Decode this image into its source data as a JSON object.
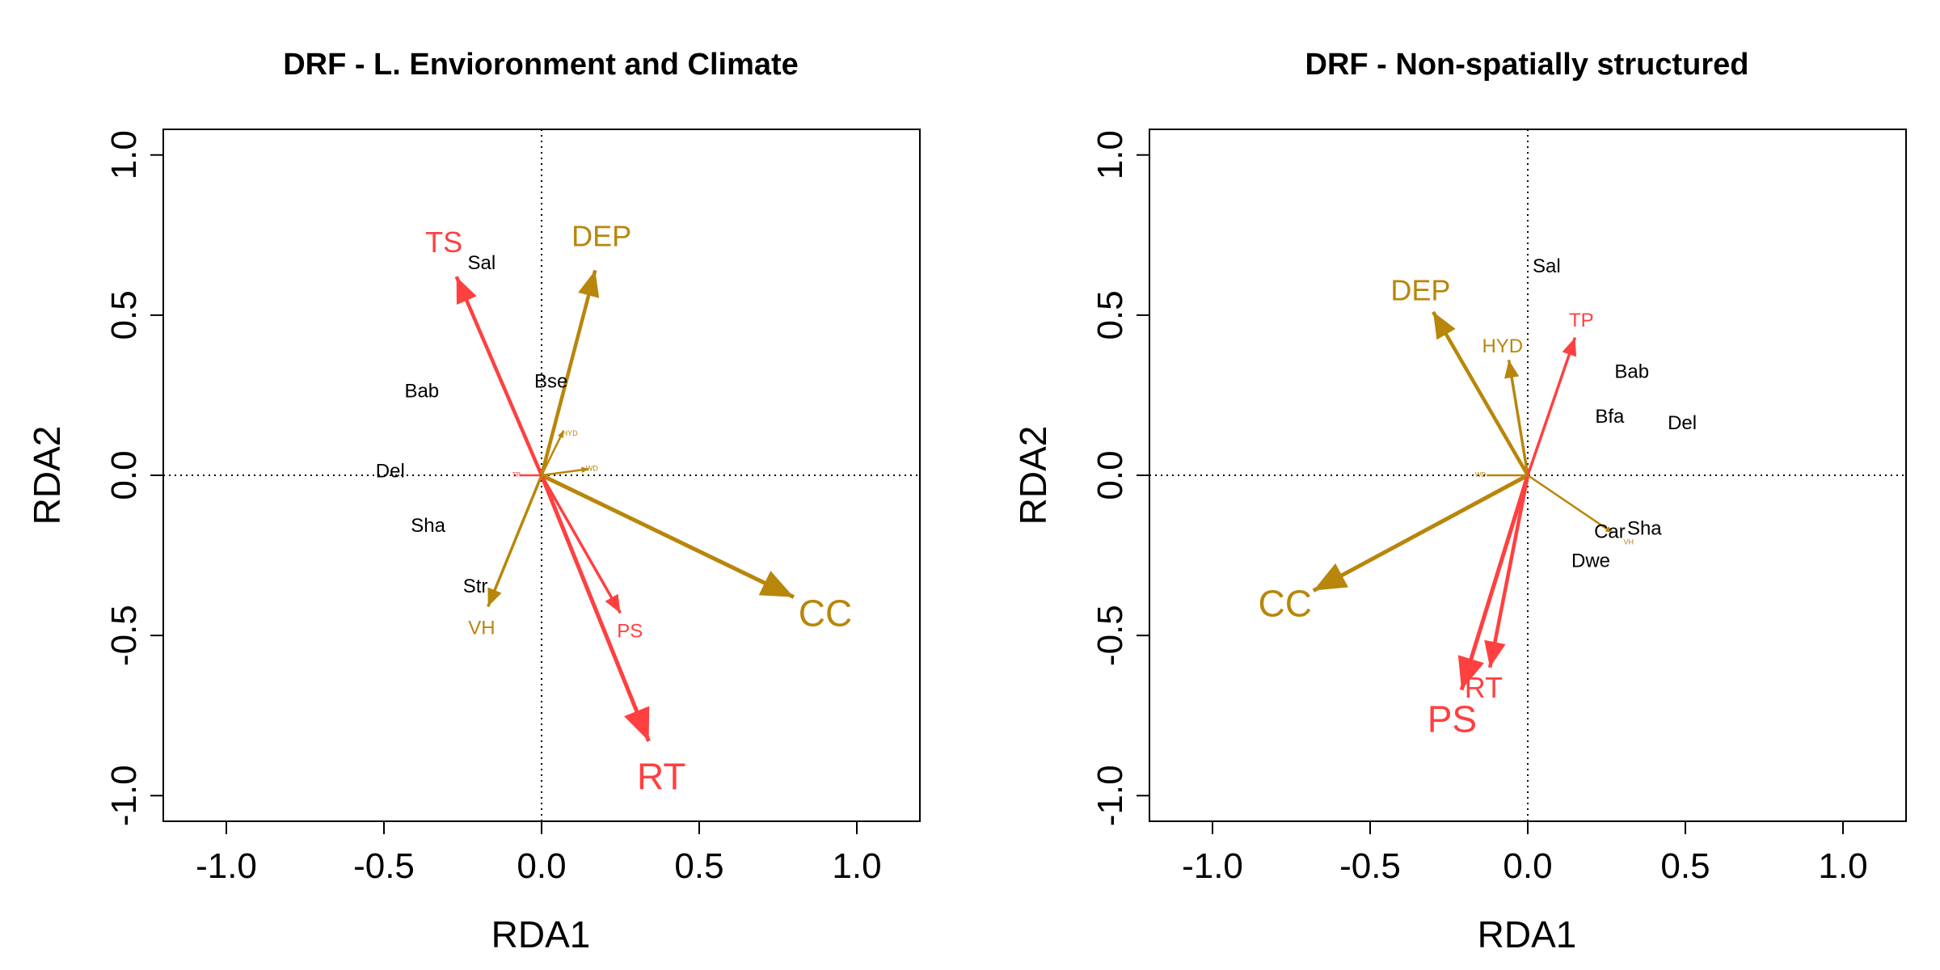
{
  "colors": {
    "env": "#B8860B",
    "clim": "#FF4040",
    "species": "#000000",
    "axis": "#000000"
  },
  "chart_data": [
    {
      "type": "scatter",
      "title": "DRF - L. Envioronment and Climate",
      "xlabel": "RDA1",
      "ylabel": "RDA2",
      "xlim": [
        -1.2,
        1.2
      ],
      "ylim": [
        -1.08,
        1.08
      ],
      "xticks": [
        "-1.0",
        "-0.5",
        "0.0",
        "0.5",
        "1.0"
      ],
      "yticks": [
        "-1.0",
        "-0.5",
        "0.0",
        "0.5",
        "1.0"
      ],
      "grid": false,
      "species": [
        {
          "label": "Sal",
          "x": -0.19,
          "y": 0.66
        },
        {
          "label": "Bse",
          "x": 0.03,
          "y": 0.29
        },
        {
          "label": "Bab",
          "x": -0.38,
          "y": 0.26
        },
        {
          "label": "Del",
          "x": -0.48,
          "y": 0.01
        },
        {
          "label": "Sha",
          "x": -0.36,
          "y": -0.16
        },
        {
          "label": "Str",
          "x": -0.21,
          "y": -0.35
        }
      ],
      "arrows": [
        {
          "label": "TS",
          "group": "clim",
          "x": -0.27,
          "y": 0.62,
          "lx": -0.31,
          "ly": 0.72,
          "size": "large"
        },
        {
          "label": "DEP",
          "group": "env",
          "x": 0.17,
          "y": 0.64,
          "lx": 0.19,
          "ly": 0.74,
          "size": "large"
        },
        {
          "label": "CC",
          "group": "env",
          "x": 0.8,
          "y": -0.38,
          "lx": 0.9,
          "ly": -0.44,
          "size": "xlarge"
        },
        {
          "label": "RT",
          "group": "clim",
          "x": 0.34,
          "y": -0.83,
          "lx": 0.38,
          "ly": -0.95,
          "size": "xlarge"
        },
        {
          "label": "PS",
          "group": "clim",
          "x": 0.25,
          "y": -0.43,
          "lx": 0.28,
          "ly": -0.49,
          "size": "small"
        },
        {
          "label": "VH",
          "group": "env",
          "x": -0.17,
          "y": -0.41,
          "lx": -0.19,
          "ly": -0.48,
          "size": "small"
        },
        {
          "label": "HYD",
          "group": "env",
          "x": 0.07,
          "y": 0.14,
          "lx": 0.09,
          "ly": 0.13,
          "size": "tiny"
        },
        {
          "label": "WD",
          "group": "env",
          "x": 0.15,
          "y": 0.02,
          "lx": 0.16,
          "ly": 0.02,
          "size": "tiny"
        },
        {
          "label": "TP",
          "group": "clim",
          "x": -0.07,
          "y": 0.0,
          "lx": -0.08,
          "ly": 0.0,
          "size": "none"
        }
      ]
    },
    {
      "type": "scatter",
      "title": "DRF - Non-spatially structured",
      "xlabel": "RDA1",
      "ylabel": "RDA2",
      "xlim": [
        -1.2,
        1.2
      ],
      "ylim": [
        -1.08,
        1.08
      ],
      "xticks": [
        "-1.0",
        "-0.5",
        "0.0",
        "0.5",
        "1.0"
      ],
      "yticks": [
        "-1.0",
        "-0.5",
        "0.0",
        "0.5",
        "1.0"
      ],
      "grid": false,
      "species": [
        {
          "label": "Sal",
          "x": 0.06,
          "y": 0.65
        },
        {
          "label": "Bab",
          "x": 0.33,
          "y": 0.32
        },
        {
          "label": "Bfa",
          "x": 0.26,
          "y": 0.18
        },
        {
          "label": "Del",
          "x": 0.49,
          "y": 0.16
        },
        {
          "label": "Car",
          "x": 0.26,
          "y": -0.18
        },
        {
          "label": "Sha",
          "x": 0.37,
          "y": -0.17
        },
        {
          "label": "Dwe",
          "x": 0.2,
          "y": -0.27
        }
      ],
      "arrows": [
        {
          "label": "DEP",
          "group": "env",
          "x": -0.3,
          "y": 0.51,
          "lx": -0.34,
          "ly": 0.57,
          "size": "large"
        },
        {
          "label": "HYD",
          "group": "env",
          "x": -0.06,
          "y": 0.36,
          "lx": -0.08,
          "ly": 0.4,
          "size": "small"
        },
        {
          "label": "TP",
          "group": "clim",
          "x": 0.15,
          "y": 0.43,
          "lx": 0.17,
          "ly": 0.48,
          "size": "small"
        },
        {
          "label": "CC",
          "group": "env",
          "x": -0.68,
          "y": -0.36,
          "lx": -0.77,
          "ly": -0.41,
          "size": "xlarge"
        },
        {
          "label": "RT",
          "group": "clim",
          "x": -0.12,
          "y": -0.6,
          "lx": -0.14,
          "ly": -0.67,
          "size": "large"
        },
        {
          "label": "PS",
          "group": "clim",
          "x": -0.21,
          "y": -0.67,
          "lx": -0.24,
          "ly": -0.77,
          "size": "xlarge"
        },
        {
          "label": "VH",
          "group": "env",
          "x": 0.27,
          "y": -0.18,
          "lx": 0.32,
          "ly": -0.21,
          "size": "tiny"
        },
        {
          "label": "WD",
          "group": "env",
          "x": -0.13,
          "y": 0.0,
          "lx": -0.15,
          "ly": 0.0,
          "size": "none"
        }
      ]
    }
  ]
}
